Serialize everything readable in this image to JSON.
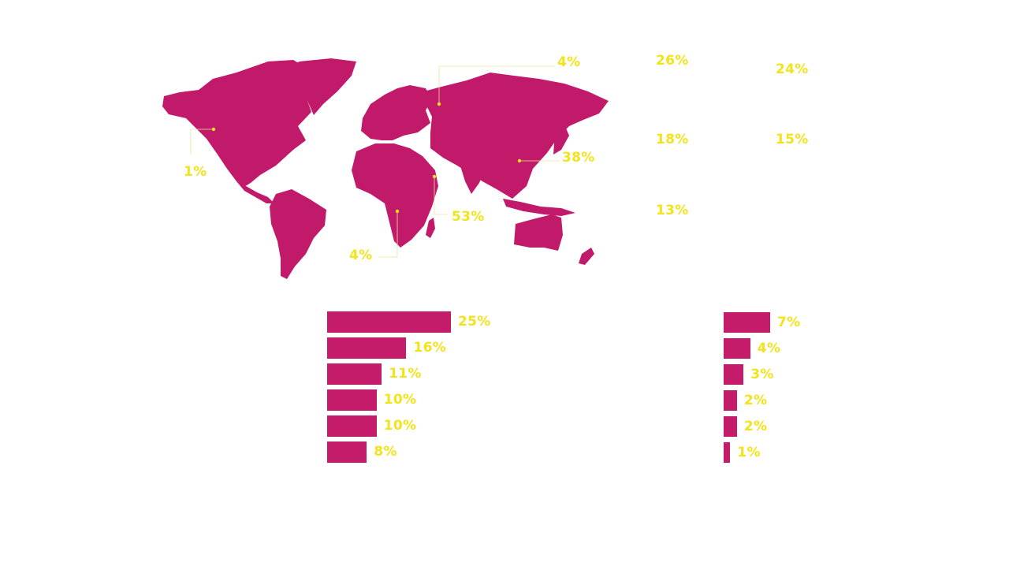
{
  "colors": {
    "map_fill": "#c21a6a",
    "bar_fill": "#c41b6b",
    "label": "#f2e31b",
    "leader": "#e9e39a"
  },
  "map": {
    "callouts": [
      {
        "id": "north-america",
        "label": "1%"
      },
      {
        "id": "south-africa",
        "label": "4%"
      },
      {
        "id": "central-africa",
        "label": "53%"
      },
      {
        "id": "middle-east",
        "label": ""
      },
      {
        "id": "russia",
        "label": "4%"
      },
      {
        "id": "east-asia",
        "label": "38%"
      }
    ]
  },
  "side_stats": [
    "26%",
    "24%",
    "18%",
    "15%",
    "13%"
  ],
  "chart_data": [
    {
      "type": "bar",
      "orientation": "horizontal",
      "categories": [
        "",
        "",
        "",
        "",
        "",
        ""
      ],
      "values": [
        25,
        16,
        11,
        10,
        10,
        8
      ],
      "labels": [
        "25%",
        "16%",
        "11%",
        "10%",
        "10%",
        "8%"
      ],
      "title": "",
      "xlabel": "",
      "ylabel": "",
      "xlim": [
        0,
        25
      ]
    },
    {
      "type": "bar",
      "orientation": "horizontal",
      "categories": [
        "",
        "",
        "",
        "",
        "",
        ""
      ],
      "values": [
        7,
        4,
        3,
        2,
        2,
        1
      ],
      "labels": [
        "7%",
        "4%",
        "3%",
        "2%",
        "2%",
        "1%"
      ],
      "title": "",
      "xlabel": "",
      "ylabel": "",
      "xlim": [
        0,
        7
      ]
    }
  ]
}
